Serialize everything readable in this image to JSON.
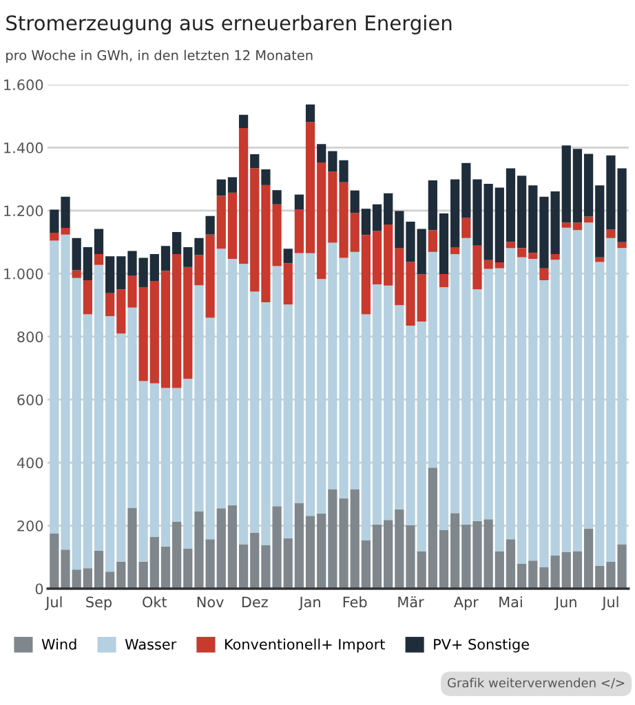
{
  "chart_data": {
    "type": "bar",
    "stacked": true,
    "title": "Stromerzeugung aus erneuerbaren Energien",
    "subtitle": "pro Woche in GWh, in den letzten 12 Monaten",
    "categories": [
      "Jul",
      null,
      null,
      null,
      "Sep",
      null,
      null,
      null,
      null,
      "Okt",
      null,
      null,
      null,
      null,
      "Nov",
      null,
      null,
      null,
      "Dez",
      null,
      null,
      null,
      null,
      "Jan",
      null,
      null,
      null,
      "Feb",
      null,
      null,
      null,
      null,
      "Mär",
      null,
      null,
      null,
      null,
      "Apr",
      null,
      null,
      null,
      "Mai",
      null,
      null,
      null,
      null,
      "Jun",
      null,
      null,
      null,
      "Jul",
      null
    ],
    "series": [
      {
        "name": "Wind",
        "color": "#7f878d",
        "values": [
          175,
          124,
          61,
          65,
          121,
          54,
          86,
          257,
          86,
          164,
          134,
          212,
          127,
          246,
          157,
          255,
          265,
          141,
          177,
          138,
          262,
          160,
          272,
          231,
          239,
          316,
          287,
          316,
          153,
          204,
          218,
          252,
          201,
          119,
          384,
          186,
          240,
          204,
          215,
          220,
          119,
          157,
          79,
          89,
          68,
          105,
          116,
          119,
          191,
          73,
          86,
          141
        ]
      },
      {
        "name": "Wasser",
        "color": "#b5d0e0",
        "values": [
          930,
          1000,
          925,
          806,
          907,
          811,
          724,
          635,
          573,
          488,
          503,
          425,
          539,
          717,
          703,
          824,
          782,
          890,
          766,
          771,
          762,
          742,
          793,
          834,
          744,
          782,
          763,
          753,
          718,
          762,
          744,
          648,
          634,
          729,
          685,
          771,
          822,
          909,
          735,
          795,
          898,
          924,
          973,
          958,
          911,
          939,
          1030,
          1019,
          971,
          964,
          1027,
          940
        ]
      },
      {
        "name": "Konventionell+ Import",
        "color": "#c8392e",
        "values": [
          25,
          21,
          25,
          108,
          34,
          73,
          140,
          101,
          298,
          325,
          372,
          425,
          355,
          96,
          264,
          168,
          210,
          431,
          392,
          372,
          196,
          131,
          138,
          416,
          370,
          226,
          240,
          124,
          252,
          169,
          194,
          181,
          202,
          150,
          69,
          42,
          22,
          64,
          139,
          28,
          19,
          20,
          29,
          19,
          38,
          18,
          16,
          24,
          19,
          15,
          27,
          19
        ]
      },
      {
        "name": "PV+ Sonstige",
        "color": "#1f2d3a",
        "values": [
          73,
          99,
          102,
          105,
          80,
          117,
          105,
          79,
          93,
          85,
          79,
          70,
          63,
          54,
          59,
          52,
          49,
          42,
          44,
          50,
          45,
          46,
          48,
          56,
          58,
          65,
          70,
          71,
          83,
          85,
          99,
          118,
          128,
          144,
          158,
          192,
          215,
          174,
          210,
          242,
          237,
          233,
          230,
          214,
          227,
          199,
          245,
          234,
          199,
          228,
          235,
          234
        ]
      }
    ],
    "ylim": [
      0,
      1600
    ],
    "yticks": [
      0,
      200,
      400,
      600,
      800,
      {
        "value": 1000,
        "label": "1.000"
      },
      {
        "value": 1200,
        "label": "1.200"
      },
      {
        "value": 1400,
        "label": "1.400"
      },
      {
        "value": 1600,
        "label": "1.600"
      }
    ],
    "grid": "y",
    "legend": "bottom",
    "annotations": [
      "Grafik weiterverwenden </>"
    ]
  }
}
